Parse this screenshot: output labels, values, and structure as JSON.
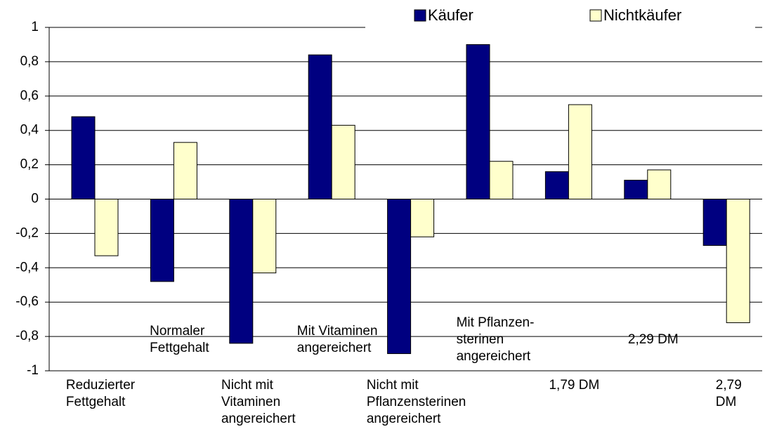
{
  "chart_data": {
    "type": "bar",
    "categories": [
      "Reduzierter\nFettgehalt",
      "Normaler\nFettgehalt",
      "Nicht mit\nVitaminen\nangereichert",
      "Mit Vitaminen\nangereichert",
      "Nicht mit\nPflanzensterinen\nangereichert",
      "Mit Pflanzen-\nsterinen\nangereichert",
      "1,79 DM",
      "2,29 DM",
      "2,79 DM"
    ],
    "series": [
      {
        "name": "Käufer",
        "color": "#000080",
        "values": [
          0.48,
          -0.48,
          -0.84,
          0.84,
          -0.9,
          0.9,
          0.16,
          0.11,
          -0.27
        ]
      },
      {
        "name": "Nichtkäufer",
        "color": "#ffffcc",
        "values": [
          -0.33,
          0.33,
          -0.43,
          0.43,
          -0.22,
          0.22,
          0.55,
          0.17,
          -0.72
        ]
      }
    ],
    "ylim": [
      -1,
      1
    ],
    "yticks": [
      -1,
      {
        "value": -0.8,
        "label": "-0,8"
      },
      {
        "value": -0.6,
        "label": "-0,6"
      },
      {
        "value": -0.4,
        "label": "-0,4"
      },
      {
        "value": -0.2,
        "label": "-0,2"
      },
      0,
      {
        "value": 0.2,
        "label": "0,2"
      },
      {
        "value": 0.4,
        "label": "0,4"
      },
      {
        "value": 0.6,
        "label": "0,6"
      },
      {
        "value": 0.8,
        "label": "0,8"
      },
      1
    ],
    "grid": true,
    "legend": "top"
  }
}
